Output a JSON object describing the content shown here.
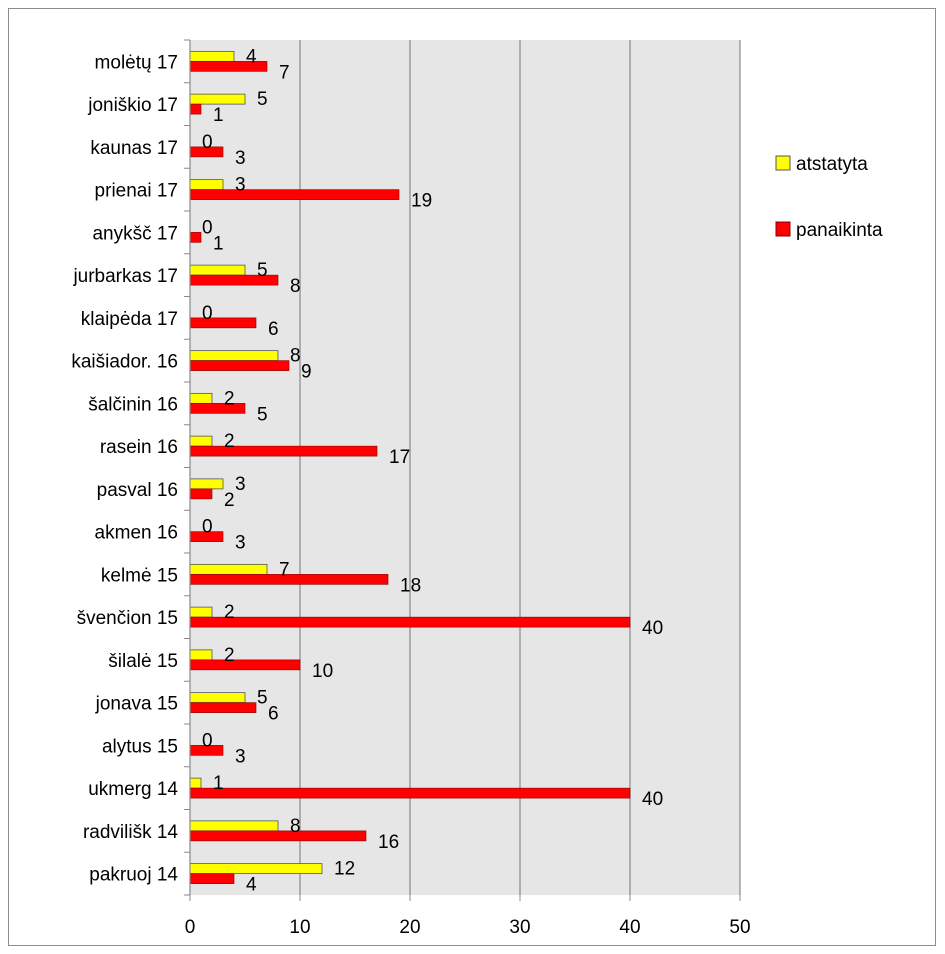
{
  "chart_data": {
    "type": "bar",
    "orientation": "horizontal",
    "title": "",
    "xlabel": "",
    "ylabel": "",
    "xlim": [
      0,
      50
    ],
    "xticks": [
      0,
      10,
      20,
      30,
      40,
      50
    ],
    "grid": true,
    "legend_position": "right",
    "categories": [
      "pakruoj 14",
      "radvilišk 14",
      "ukmerg 14",
      "alytus 15",
      "jonava 15",
      "šilalė 15",
      "švenčion 15",
      "kelmė 15",
      "akmen 16",
      "pasval 16",
      "rasein 16",
      "šalčinin 16",
      "kaišiador. 16",
      "klaipėda 17",
      "jurbarkas 17",
      "anykšč 17",
      "prienai 17",
      "kaunas 17",
      "joniškio 17",
      "molėtų 17"
    ],
    "series": [
      {
        "name": "atstatyta",
        "color": "#ffff00",
        "values": [
          12,
          8,
          1,
          0,
          5,
          2,
          2,
          7,
          0,
          3,
          2,
          2,
          8,
          0,
          5,
          0,
          3,
          0,
          5,
          4
        ]
      },
      {
        "name": "panaikinta",
        "color": "#ff0000",
        "values": [
          4,
          16,
          40,
          3,
          6,
          10,
          40,
          18,
          3,
          2,
          17,
          5,
          9,
          6,
          8,
          1,
          19,
          3,
          1,
          7
        ]
      }
    ]
  }
}
